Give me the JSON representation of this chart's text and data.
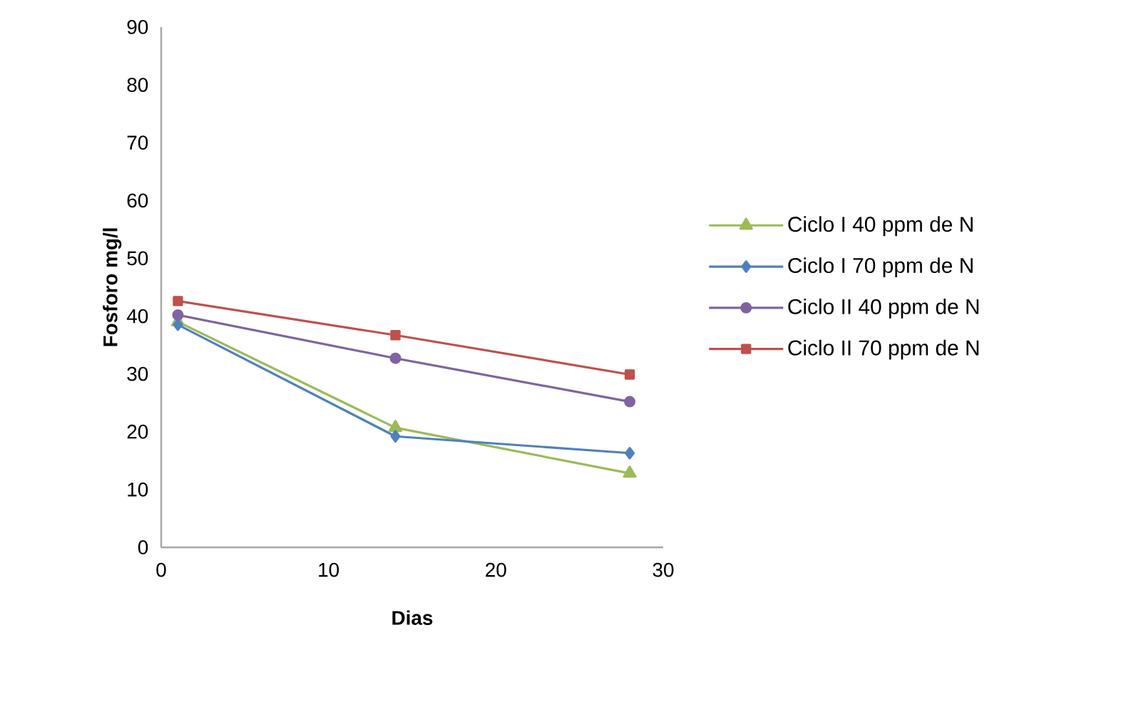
{
  "chart_data": {
    "type": "line",
    "xlabel": "Dias",
    "ylabel": "Fosforo mg/l",
    "xlim": [
      0,
      30
    ],
    "xticks": [
      0,
      10,
      20,
      30
    ],
    "ylim": [
      0,
      90
    ],
    "yticks": [
      0,
      10,
      20,
      30,
      40,
      50,
      60,
      70,
      80,
      90
    ],
    "x": [
      1,
      14,
      28
    ],
    "grid": false,
    "legend": "right",
    "series": [
      {
        "name": "Ciclo I 40 ppm de N",
        "color": "#9bbb59",
        "marker": "triangle",
        "values": [
          39,
          20.7,
          12.8
        ]
      },
      {
        "name": "Ciclo I 70 ppm de N",
        "color": "#4f81bd",
        "marker": "diamond",
        "values": [
          38.5,
          19.2,
          16.3
        ]
      },
      {
        "name": "Ciclo II 40 ppm de N",
        "color": "#8064a2",
        "marker": "circle",
        "values": [
          40.2,
          32.7,
          25.2
        ]
      },
      {
        "name": "Ciclo II 70 ppm de N",
        "color": "#c0504d",
        "marker": "square",
        "values": [
          42.6,
          36.7,
          29.9
        ]
      }
    ]
  }
}
